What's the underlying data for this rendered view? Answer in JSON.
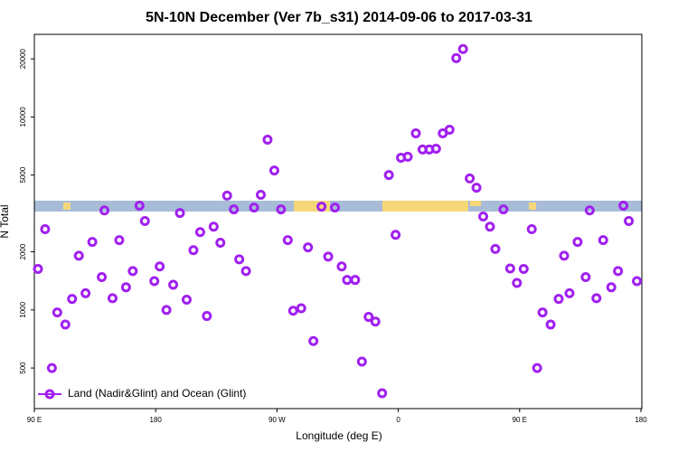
{
  "chart_data": {
    "type": "scatter",
    "title": "5N-10N December (Ver 7b_s31)   2014-09-06 to 2017-03-31",
    "xlabel": "Longitude (deg E)",
    "ylabel": "N Total",
    "xlim": [
      90,
      540
    ],
    "xticks": [
      {
        "value": 90,
        "label": "90 E"
      },
      {
        "value": 180,
        "label": "180"
      },
      {
        "value": 270,
        "label": "90 W"
      },
      {
        "value": 360,
        "label": "0"
      },
      {
        "value": 450,
        "label": "90 E"
      },
      {
        "value": 540,
        "label": "180"
      }
    ],
    "ylim": [
      308,
      26800
    ],
    "yticks": [
      500,
      1000,
      2000,
      5000,
      10000,
      20000
    ],
    "log_scale": true,
    "legend": "bottom-left",
    "series": [
      {
        "name": "Land (Nadir&Glint) and Ocean (Glint)",
        "color": "#a020f0",
        "x": [
          92.7,
          98,
          103,
          107,
          113,
          118,
          123,
          128,
          133,
          140,
          142,
          148,
          153,
          158,
          163,
          168,
          172,
          179,
          183,
          188,
          193,
          198,
          203,
          208,
          213,
          218,
          223,
          228,
          233,
          238,
          242,
          247,
          253,
          258,
          263,
          268,
          273,
          278,
          282,
          288,
          293,
          297,
          303,
          308,
          313,
          318,
          322,
          328,
          333,
          338,
          343,
          348,
          353,
          358,
          362,
          367,
          373,
          378,
          383,
          388,
          393,
          398,
          403,
          408,
          413,
          418,
          423,
          428,
          432,
          438,
          443,
          448,
          453,
          459,
          463,
          467,
          473,
          479,
          483,
          487,
          493,
          499,
          502,
          507,
          512,
          518,
          523,
          527,
          531,
          537
        ],
        "values": [
          1630,
          2620,
          500,
          970,
          840,
          1140,
          1910,
          1220,
          2250,
          1480,
          3280,
          1150,
          2300,
          1310,
          1590,
          3470,
          2890,
          1410,
          1680,
          1000,
          1350,
          3180,
          1130,
          2040,
          2530,
          930,
          2700,
          2230,
          3910,
          3320,
          1830,
          1590,
          3390,
          3950,
          7630,
          5280,
          3320,
          2300,
          990,
          1020,
          2110,
          690,
          3430,
          1890,
          3390,
          1680,
          1430,
          1430,
          540,
          920,
          870,
          370,
          5000,
          2450,
          6150,
          6220,
          8230,
          6780,
          6780,
          6850,
          8230,
          8590,
          20180,
          22500,
          4800,
          4300,
          3050,
          2700,
          2070,
          3320,
          1640,
          1380,
          1630,
          2620,
          500,
          970,
          840,
          1140,
          1910,
          1220,
          2250,
          1480,
          3280,
          1150,
          2300,
          1310,
          1590,
          3470,
          2890,
          1410
        ]
      }
    ]
  }
}
